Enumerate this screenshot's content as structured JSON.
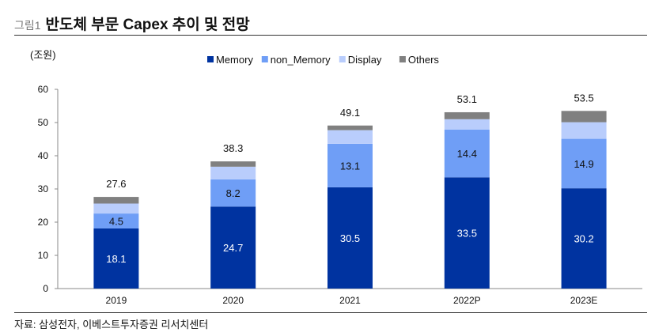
{
  "header": {
    "figure_label": "그림1",
    "title": "반도체 부문 Capex 추이 및 전망"
  },
  "source": "자료: 삼성전자, 이베스트투자증권 리서치센터",
  "chart_data": {
    "type": "bar",
    "stacked": true,
    "ylabel": "(조원)",
    "ylim": [
      0,
      60
    ],
    "yticks": [
      0,
      10,
      20,
      30,
      40,
      50,
      60
    ],
    "categories": [
      "2019",
      "2020",
      "2021",
      "2022P",
      "2023E"
    ],
    "series": [
      {
        "name": "Memory",
        "color": "#0033A0",
        "values": [
          18.1,
          24.7,
          30.5,
          33.5,
          30.2
        ],
        "labels": true
      },
      {
        "name": "non_Memory",
        "color": "#6F9EF6",
        "values": [
          4.5,
          8.2,
          13.1,
          14.4,
          14.9
        ],
        "labels": true
      },
      {
        "name": "Display",
        "color": "#B9CDFC",
        "values": [
          3.0,
          3.8,
          4.1,
          3.1,
          5.0
        ]
      },
      {
        "name": "Others",
        "color": "#808080",
        "values": [
          2.0,
          1.6,
          1.4,
          2.1,
          3.4
        ]
      }
    ],
    "totals": [
      "27.6",
      "38.3",
      "49.1",
      "53.1",
      "53.5"
    ],
    "legend": "top",
    "grid": false
  }
}
